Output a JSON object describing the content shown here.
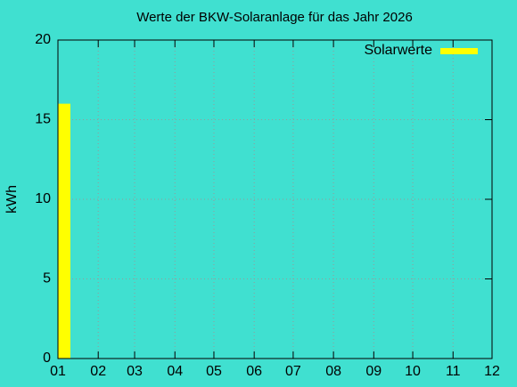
{
  "chart_data": {
    "type": "bar",
    "title": "Werte der BKW-Solaranlage für das Jahr 2026",
    "ylabel": "kWh",
    "series": [
      {
        "name": "Solarwerte",
        "color": "#ffff00",
        "x": [
          0
        ],
        "values": [
          16
        ]
      }
    ],
    "xlim": [
      0,
      334
    ],
    "xticks": [
      {
        "value": 0,
        "label": "01"
      },
      {
        "value": 31,
        "label": "02"
      },
      {
        "value": 59,
        "label": "03"
      },
      {
        "value": 90,
        "label": "04"
      },
      {
        "value": 120,
        "label": "05"
      },
      {
        "value": 151,
        "label": "06"
      },
      {
        "value": 181,
        "label": "07"
      },
      {
        "value": 212,
        "label": "08"
      },
      {
        "value": 243,
        "label": "09"
      },
      {
        "value": 273,
        "label": "10"
      },
      {
        "value": 304,
        "label": "11"
      },
      {
        "value": 334,
        "label": "12"
      }
    ],
    "ylim": [
      0,
      20
    ],
    "yticks": [
      0,
      5,
      10,
      15,
      20
    ],
    "grid": true,
    "legend": "top-right",
    "background": "#40e0d0"
  }
}
